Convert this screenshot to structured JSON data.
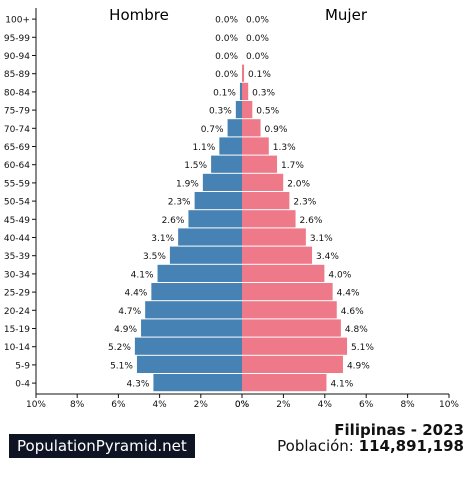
{
  "chart_data": {
    "type": "bar",
    "orientation": "horizontal-pyramid",
    "categories": [
      "100+",
      "95-99",
      "90-94",
      "85-89",
      "80-84",
      "75-79",
      "70-74",
      "65-69",
      "60-64",
      "55-59",
      "50-54",
      "45-49",
      "40-44",
      "35-39",
      "30-34",
      "25-29",
      "20-24",
      "15-19",
      "10-14",
      "5-9",
      "0-4"
    ],
    "series": [
      {
        "name": "Hombre",
        "color": "#4682b4",
        "values": [
          0.0,
          0.0,
          0.0,
          0.0,
          0.1,
          0.3,
          0.7,
          1.1,
          1.5,
          1.9,
          2.3,
          2.6,
          3.1,
          3.5,
          4.1,
          4.4,
          4.7,
          4.9,
          5.2,
          5.1,
          4.3
        ],
        "labels": [
          "0.0%",
          "0.0%",
          "0.0%",
          "0.0%",
          "0.1%",
          "0.3%",
          "0.7%",
          "1.1%",
          "1.5%",
          "1.9%",
          "2.3%",
          "2.6%",
          "3.1%",
          "3.5%",
          "4.1%",
          "4.4%",
          "4.7%",
          "4.9%",
          "5.2%",
          "5.1%",
          "4.3%"
        ]
      },
      {
        "name": "Mujer",
        "color": "#ee7989",
        "values": [
          0.0,
          0.0,
          0.0,
          0.1,
          0.3,
          0.5,
          0.9,
          1.3,
          1.7,
          2.0,
          2.3,
          2.6,
          3.1,
          3.4,
          4.0,
          4.4,
          4.6,
          4.8,
          5.1,
          4.9,
          4.1
        ],
        "labels": [
          "0.0%",
          "0.0%",
          "0.0%",
          "0.1%",
          "0.3%",
          "0.5%",
          "0.9%",
          "1.3%",
          "1.7%",
          "2.0%",
          "2.3%",
          "2.6%",
          "3.1%",
          "3.4%",
          "4.0%",
          "4.4%",
          "4.6%",
          "4.8%",
          "5.1%",
          "4.9%",
          "4.1%"
        ]
      }
    ],
    "xlim": [
      0,
      10
    ],
    "xticks_left": [
      "10%",
      "8%",
      "6%",
      "4%",
      "2%",
      "0%"
    ],
    "xticks_right": [
      "0%",
      "2%",
      "4%",
      "6%",
      "8%",
      "10%"
    ],
    "legend_left": "Hombre",
    "legend_right": "Mujer"
  },
  "footer": {
    "brand": "PopulationPyramid.net",
    "country": "Filipinas - 2023",
    "population_label": "Población:",
    "population_value": "114,891,198"
  }
}
